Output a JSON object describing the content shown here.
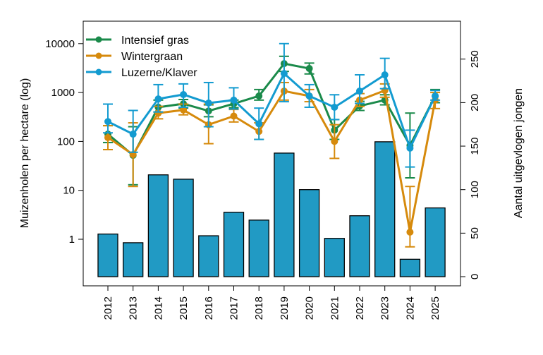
{
  "chart_data": {
    "type": "bar+line",
    "years": [
      "2012",
      "2013",
      "2014",
      "2015",
      "2016",
      "2017",
      "2018",
      "2019",
      "2020",
      "2021",
      "2022",
      "2023",
      "2024",
      "2025"
    ],
    "ylabel_left": "Muizenholen per hectare (log)",
    "ylabel_right": "Aantal uitgevlogen jongen",
    "left_ticks": [
      "1",
      "10",
      "100",
      "1000",
      "10000"
    ],
    "left_tick_values": [
      1,
      10,
      100,
      1000,
      10000
    ],
    "right_ticks": [
      "0",
      "50",
      "100",
      "150",
      "200",
      "250"
    ],
    "right_tick_values": [
      0,
      50,
      100,
      150,
      200,
      250
    ],
    "bar_series": {
      "name": "Aantal uitgevlogen jongen",
      "color": "#219ac4",
      "values": [
        49,
        39,
        117,
        112,
        47,
        74,
        65,
        142,
        100,
        44,
        70,
        155,
        20,
        79
      ]
    },
    "series": [
      {
        "name": "Intensief gras",
        "color": "#1a8a4a",
        "values": [
          141,
          52,
          500,
          590,
          420,
          590,
          850,
          3900,
          3100,
          170,
          530,
          700,
          83,
          850
        ],
        "lower": [
          95,
          13,
          400,
          480,
          320,
          490,
          700,
          2700,
          2400,
          110,
          430,
          560,
          18,
          620
        ],
        "upper": [
          210,
          200,
          700,
          720,
          560,
          700,
          1150,
          5500,
          4000,
          280,
          660,
          900,
          380,
          1150
        ]
      },
      {
        "name": "Wintergraan",
        "color": "#d68a0c",
        "values": [
          120,
          54,
          380,
          440,
          220,
          330,
          160,
          1070,
          850,
          100,
          700,
          1100,
          1.4,
          700
        ],
        "lower": [
          68,
          12,
          290,
          350,
          90,
          250,
          110,
          700,
          650,
          45,
          520,
          800,
          0.7,
          470
        ],
        "upper": [
          210,
          240,
          520,
          580,
          580,
          450,
          240,
          1600,
          1150,
          220,
          950,
          1500,
          12,
          1000
        ]
      },
      {
        "name": "Luzerne/Klaver",
        "color": "#139bd0",
        "values": [
          255,
          141,
          740,
          910,
          610,
          700,
          230,
          2450,
          850,
          500,
          1070,
          2300,
          73,
          850
        ],
        "lower": [
          150,
          60,
          400,
          500,
          200,
          460,
          110,
          650,
          500,
          280,
          600,
          1200,
          30,
          700
        ],
        "upper": [
          580,
          430,
          1450,
          1500,
          1600,
          1250,
          480,
          10000,
          1450,
          900,
          2300,
          5000,
          170,
          1100
        ]
      }
    ],
    "legend_position": "top-left"
  }
}
